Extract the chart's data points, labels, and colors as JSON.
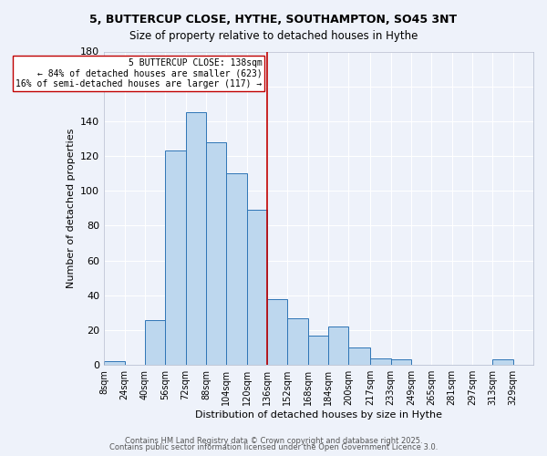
{
  "title_line1": "5, BUTTERCUP CLOSE, HYTHE, SOUTHAMPTON, SO45 3NT",
  "title_line2": "Size of property relative to detached houses in Hythe",
  "xlabel": "Distribution of detached houses by size in Hythe",
  "ylabel": "Number of detached properties",
  "bar_labels": [
    "8sqm",
    "24sqm",
    "40sqm",
    "56sqm",
    "72sqm",
    "88sqm",
    "104sqm",
    "120sqm",
    "136sqm",
    "152sqm",
    "168sqm",
    "184sqm",
    "200sqm",
    "217sqm",
    "233sqm",
    "249sqm",
    "265sqm",
    "281sqm",
    "297sqm",
    "313sqm",
    "329sqm"
  ],
  "bar_values": [
    2,
    0,
    26,
    123,
    145,
    128,
    110,
    89,
    38,
    27,
    17,
    22,
    10,
    4,
    3,
    0,
    0,
    0,
    0,
    3,
    0
  ],
  "bar_color": "#bdd7ee",
  "bar_edgecolor": "#2e75b6",
  "vline_x": 136,
  "annotation_text": "5 BUTTERCUP CLOSE: 138sqm\n← 84% of detached houses are smaller (623)\n16% of semi-detached houses are larger (117) →",
  "vline_color": "#c00000",
  "annotation_box_edgecolor": "#c00000",
  "background_color": "#eef2fa",
  "grid_color": "#ffffff",
  "ylim": [
    0,
    180
  ],
  "yticks": [
    0,
    20,
    40,
    60,
    80,
    100,
    120,
    140,
    160,
    180
  ],
  "footer_line1": "Contains HM Land Registry data © Crown copyright and database right 2025.",
  "footer_line2": "Contains public sector information licensed under the Open Government Licence 3.0.",
  "bin_edges": [
    8,
    24,
    40,
    56,
    72,
    88,
    104,
    120,
    136,
    152,
    168,
    184,
    200,
    217,
    233,
    249,
    265,
    281,
    297,
    313,
    329,
    345
  ]
}
